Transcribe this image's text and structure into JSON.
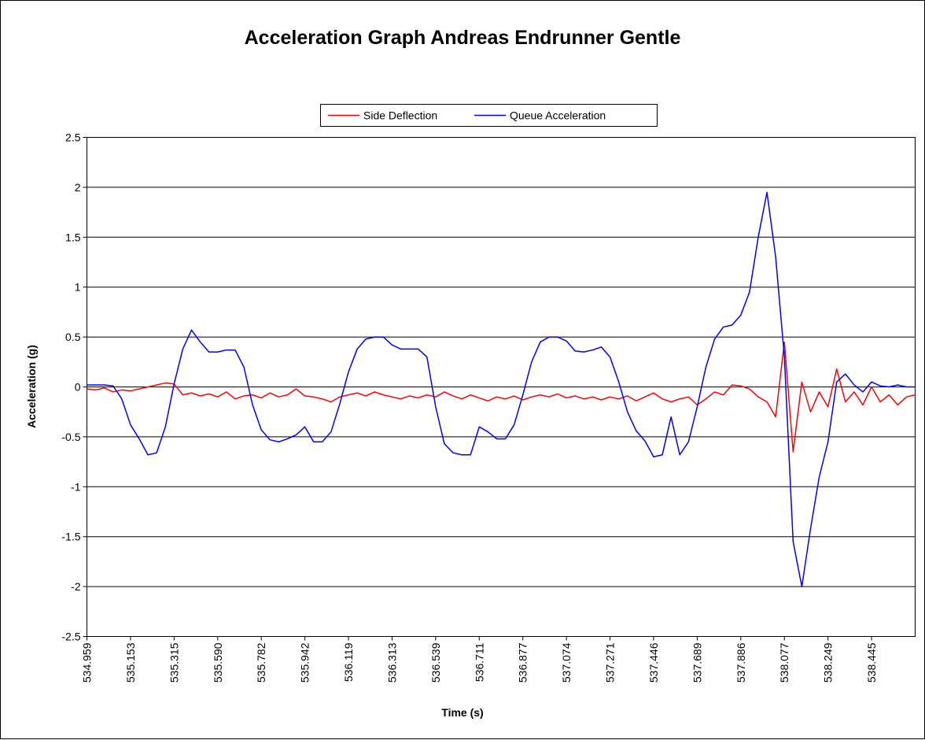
{
  "chart_data": {
    "type": "line",
    "title": "Acceleration Graph Andreas Endrunner Gentle",
    "xlabel": "Time (s)",
    "ylabel": "Acceleration (g)",
    "categories": [
      "534.959",
      null,
      null,
      null,
      null,
      "535.153",
      null,
      null,
      null,
      null,
      "535.315",
      null,
      null,
      null,
      null,
      "535.590",
      null,
      null,
      null,
      null,
      "535.782",
      null,
      null,
      null,
      null,
      "535.942",
      null,
      null,
      null,
      null,
      "536.119",
      null,
      null,
      null,
      null,
      "536.313",
      null,
      null,
      null,
      null,
      "536.539",
      null,
      null,
      null,
      null,
      "536.711",
      null,
      null,
      null,
      null,
      "536.877",
      null,
      null,
      null,
      null,
      "537.074",
      null,
      null,
      null,
      null,
      "537.271",
      null,
      null,
      null,
      null,
      "537.446",
      null,
      null,
      null,
      null,
      "537.689",
      null,
      null,
      null,
      null,
      "537.886",
      null,
      null,
      null,
      null,
      "538.077",
      null,
      null,
      null,
      null,
      "538.249",
      null,
      null,
      null,
      null,
      "538.445",
      null,
      null,
      null,
      null,
      null
    ],
    "series": [
      {
        "name": "Side Deflection",
        "color": "#ff0000",
        "values": [
          -0.02,
          -0.03,
          -0.01,
          -0.05,
          -0.03,
          -0.04,
          -0.02,
          0.0,
          0.02,
          0.04,
          0.03,
          -0.08,
          -0.06,
          -0.09,
          -0.07,
          -0.1,
          -0.05,
          -0.12,
          -0.09,
          -0.08,
          -0.11,
          -0.06,
          -0.1,
          -0.08,
          -0.02,
          -0.09,
          -0.1,
          -0.12,
          -0.15,
          -0.1,
          -0.08,
          -0.06,
          -0.09,
          -0.05,
          -0.08,
          -0.1,
          -0.12,
          -0.09,
          -0.11,
          -0.08,
          -0.1,
          -0.05,
          -0.09,
          -0.12,
          -0.08,
          -0.11,
          -0.14,
          -0.1,
          -0.12,
          -0.09,
          -0.13,
          -0.1,
          -0.08,
          -0.1,
          -0.07,
          -0.11,
          -0.09,
          -0.12,
          -0.1,
          -0.13,
          -0.1,
          -0.12,
          -0.09,
          -0.14,
          -0.1,
          -0.06,
          -0.12,
          -0.15,
          -0.12,
          -0.1,
          -0.18,
          -0.12,
          -0.05,
          -0.08,
          0.02,
          0.01,
          -0.02,
          -0.1,
          -0.15,
          -0.3,
          0.45,
          -0.65,
          0.05,
          -0.25,
          -0.05,
          -0.2,
          0.18,
          -0.15,
          -0.05,
          -0.18,
          0.0,
          -0.15,
          -0.08,
          -0.18,
          -0.1,
          -0.08
        ]
      },
      {
        "name": "Queue Acceleration",
        "color": "#0000ff",
        "values": [
          0.02,
          0.02,
          0.02,
          0.01,
          -0.12,
          -0.38,
          -0.52,
          -0.68,
          -0.66,
          -0.4,
          0.03,
          0.38,
          0.57,
          0.45,
          0.35,
          0.35,
          0.37,
          0.37,
          0.2,
          -0.18,
          -0.43,
          -0.53,
          -0.55,
          -0.52,
          -0.48,
          -0.4,
          -0.55,
          -0.55,
          -0.45,
          -0.17,
          0.15,
          0.38,
          0.48,
          0.5,
          0.5,
          0.42,
          0.38,
          0.38,
          0.38,
          0.3,
          -0.2,
          -0.57,
          -0.66,
          -0.68,
          -0.68,
          -0.4,
          -0.45,
          -0.52,
          -0.52,
          -0.38,
          -0.08,
          0.25,
          0.45,
          0.5,
          0.5,
          0.46,
          0.36,
          0.35,
          0.37,
          0.4,
          0.3,
          0.05,
          -0.25,
          -0.44,
          -0.54,
          -0.7,
          -0.68,
          -0.3,
          -0.68,
          -0.55,
          -0.2,
          0.2,
          0.48,
          0.6,
          0.62,
          0.72,
          0.95,
          1.5,
          1.95,
          1.3,
          0.3,
          -1.55,
          -2.0,
          -1.42,
          -0.9,
          -0.55,
          0.05,
          0.13,
          0.02,
          -0.05,
          0.05,
          0.01,
          0.0,
          0.02,
          0.0,
          0.0
        ]
      }
    ],
    "ylim": [
      -2.5,
      2.5
    ],
    "yticks": [
      2.5,
      2,
      1.5,
      1,
      0.5,
      0,
      -0.5,
      -1,
      -1.5,
      -2,
      -2.5
    ],
    "grid": true,
    "legend": "top"
  }
}
